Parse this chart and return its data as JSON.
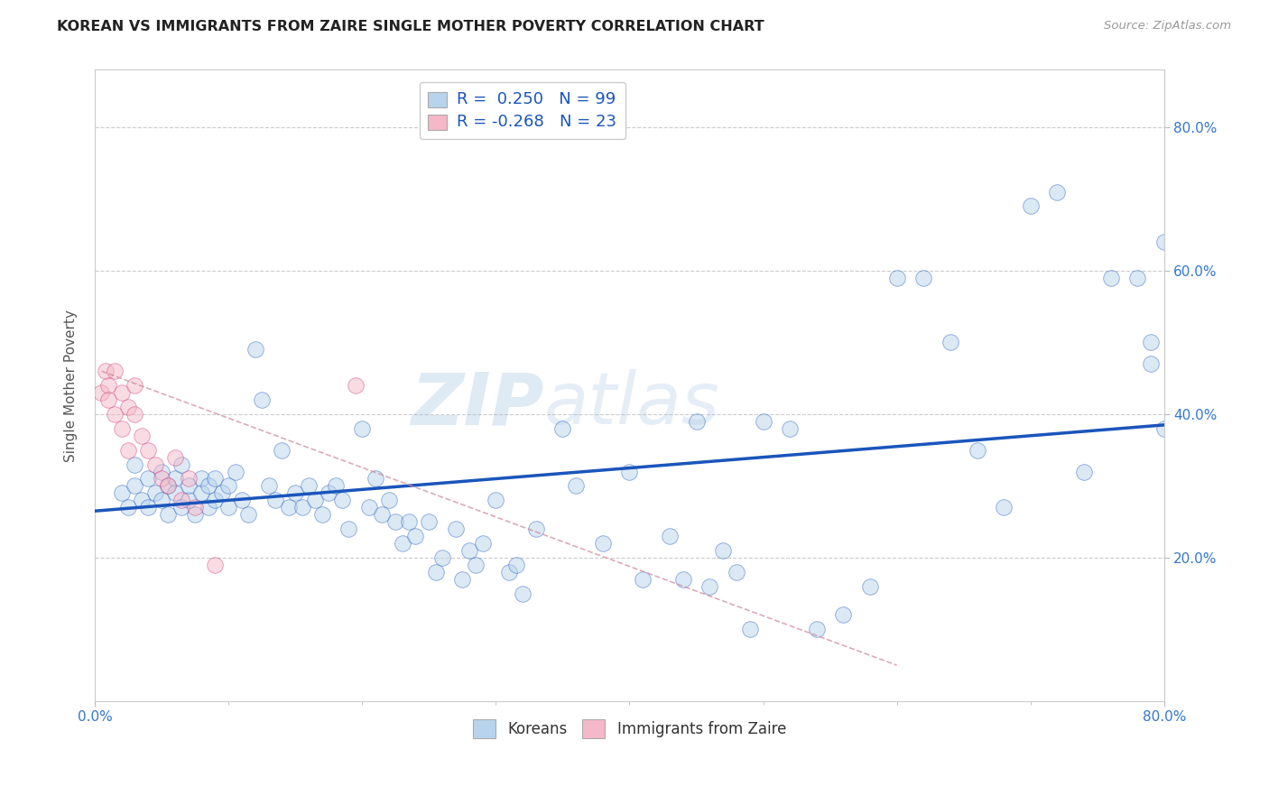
{
  "title": "KOREAN VS IMMIGRANTS FROM ZAIRE SINGLE MOTHER POVERTY CORRELATION CHART",
  "source_text": "Source: ZipAtlas.com",
  "ylabel": "Single Mother Poverty",
  "xlim": [
    0.0,
    0.8
  ],
  "ylim": [
    0.0,
    0.88
  ],
  "ytick_positions": [
    0.2,
    0.4,
    0.6,
    0.8
  ],
  "ytick_labels": [
    "20.0%",
    "40.0%",
    "60.0%",
    "80.0%"
  ],
  "korean_R": 0.25,
  "korean_N": 99,
  "zaire_R": -0.268,
  "zaire_N": 23,
  "watermark": "ZIPatlas",
  "korean_scatter_x": [
    0.02,
    0.025,
    0.03,
    0.03,
    0.035,
    0.04,
    0.04,
    0.045,
    0.05,
    0.05,
    0.055,
    0.055,
    0.06,
    0.06,
    0.065,
    0.065,
    0.07,
    0.07,
    0.075,
    0.08,
    0.08,
    0.085,
    0.085,
    0.09,
    0.09,
    0.095,
    0.1,
    0.1,
    0.105,
    0.11,
    0.115,
    0.12,
    0.125,
    0.13,
    0.135,
    0.14,
    0.145,
    0.15,
    0.155,
    0.16,
    0.165,
    0.17,
    0.175,
    0.18,
    0.185,
    0.19,
    0.2,
    0.205,
    0.21,
    0.215,
    0.22,
    0.225,
    0.23,
    0.235,
    0.24,
    0.25,
    0.255,
    0.26,
    0.27,
    0.275,
    0.28,
    0.285,
    0.29,
    0.3,
    0.31,
    0.315,
    0.32,
    0.33,
    0.35,
    0.36,
    0.38,
    0.4,
    0.41,
    0.43,
    0.44,
    0.45,
    0.46,
    0.47,
    0.48,
    0.49,
    0.5,
    0.52,
    0.54,
    0.56,
    0.58,
    0.6,
    0.62,
    0.64,
    0.66,
    0.68,
    0.7,
    0.72,
    0.74,
    0.76,
    0.78,
    0.79,
    0.79,
    0.8,
    0.8
  ],
  "korean_scatter_y": [
    0.29,
    0.27,
    0.33,
    0.3,
    0.28,
    0.31,
    0.27,
    0.29,
    0.32,
    0.28,
    0.3,
    0.26,
    0.31,
    0.29,
    0.27,
    0.33,
    0.28,
    0.3,
    0.26,
    0.29,
    0.31,
    0.3,
    0.27,
    0.28,
    0.31,
    0.29,
    0.27,
    0.3,
    0.32,
    0.28,
    0.26,
    0.49,
    0.42,
    0.3,
    0.28,
    0.35,
    0.27,
    0.29,
    0.27,
    0.3,
    0.28,
    0.26,
    0.29,
    0.3,
    0.28,
    0.24,
    0.38,
    0.27,
    0.31,
    0.26,
    0.28,
    0.25,
    0.22,
    0.25,
    0.23,
    0.25,
    0.18,
    0.2,
    0.24,
    0.17,
    0.21,
    0.19,
    0.22,
    0.28,
    0.18,
    0.19,
    0.15,
    0.24,
    0.38,
    0.3,
    0.22,
    0.32,
    0.17,
    0.23,
    0.17,
    0.39,
    0.16,
    0.21,
    0.18,
    0.1,
    0.39,
    0.38,
    0.1,
    0.12,
    0.16,
    0.59,
    0.59,
    0.5,
    0.35,
    0.27,
    0.69,
    0.71,
    0.32,
    0.59,
    0.59,
    0.47,
    0.5,
    0.38,
    0.64
  ],
  "zaire_scatter_x": [
    0.005,
    0.008,
    0.01,
    0.01,
    0.015,
    0.015,
    0.02,
    0.02,
    0.025,
    0.025,
    0.03,
    0.03,
    0.035,
    0.04,
    0.045,
    0.05,
    0.055,
    0.06,
    0.065,
    0.07,
    0.075,
    0.09,
    0.195
  ],
  "zaire_scatter_y": [
    0.43,
    0.46,
    0.44,
    0.42,
    0.4,
    0.46,
    0.43,
    0.38,
    0.41,
    0.35,
    0.4,
    0.44,
    0.37,
    0.35,
    0.33,
    0.31,
    0.3,
    0.34,
    0.28,
    0.31,
    0.27,
    0.19,
    0.44
  ],
  "blue_line_x": [
    0.0,
    0.8
  ],
  "blue_line_y": [
    0.265,
    0.385
  ],
  "pink_line_x": [
    0.005,
    0.6
  ],
  "pink_line_y": [
    0.46,
    0.05
  ],
  "background_color": "#ffffff",
  "grid_color": "#cccccc",
  "title_color": "#222222",
  "axis_label_color": "#555555",
  "tick_label_color": "#3377cc",
  "legend_korean_color": "#b8d4ec",
  "legend_zaire_color": "#f5b8c8",
  "scatter_size": 160,
  "scatter_alpha": 0.5,
  "blue_line_color": "#1a55bb",
  "pink_line_color": "#cc8899"
}
